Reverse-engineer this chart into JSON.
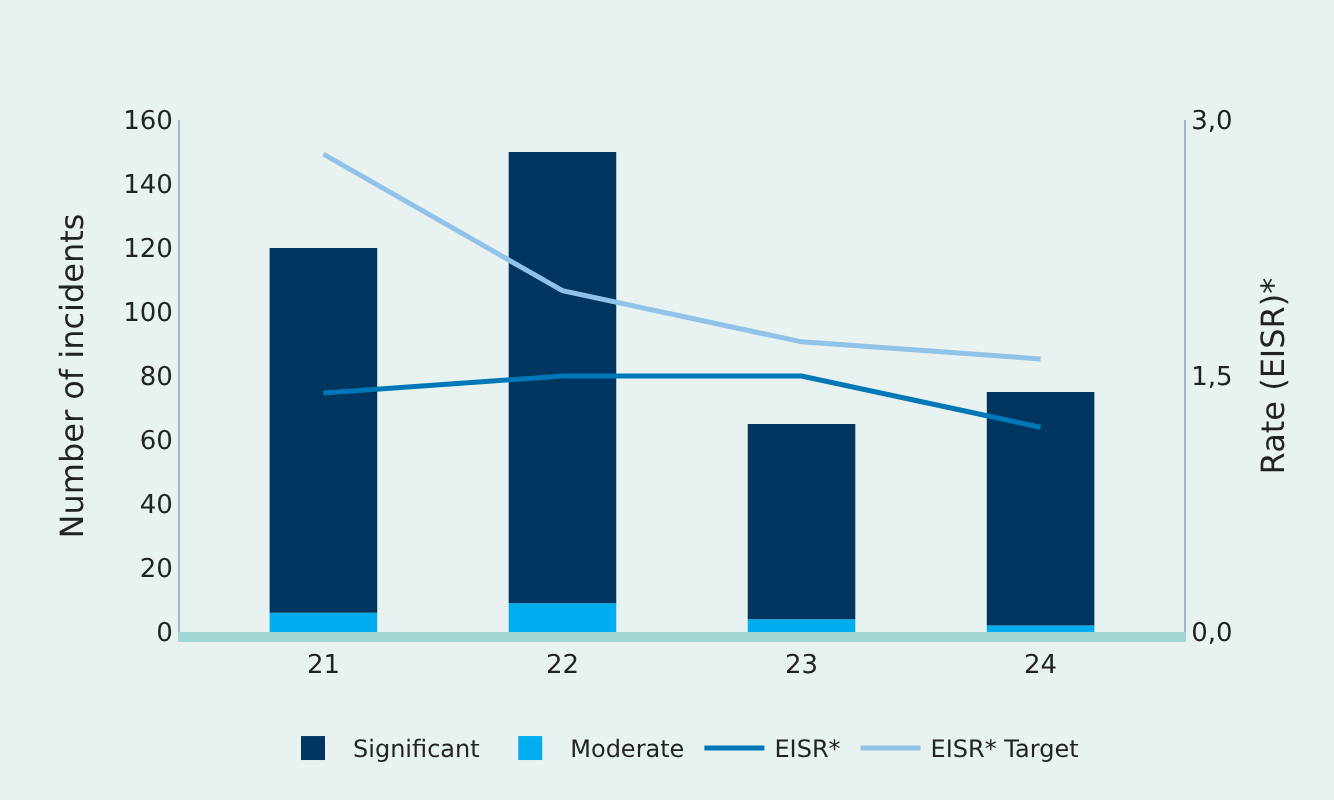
{
  "chart_data": {
    "type": "bar",
    "stacked": true,
    "categories": [
      "21",
      "22",
      "23",
      "24"
    ],
    "ylabel": "Number of incidents",
    "y2label": "Rate (EISR)*",
    "ylim": [
      0,
      160
    ],
    "yticks": [
      0,
      20,
      40,
      60,
      80,
      100,
      120,
      140,
      160
    ],
    "y2lim": [
      0,
      3
    ],
    "y2ticks": [
      {
        "value": 0,
        "label": "0,0"
      },
      {
        "value": 1.5,
        "label": "1,5"
      },
      {
        "value": 3,
        "label": "3,0"
      }
    ],
    "grid": false,
    "legend": "bottom",
    "series": [
      {
        "name": "Moderate",
        "color": "#00aeef",
        "values": [
          6,
          9,
          4,
          2
        ]
      },
      {
        "name": "Significant",
        "color": "#003660",
        "values": [
          114,
          141,
          61,
          73
        ]
      },
      {
        "name": "EISR*",
        "type": "line",
        "axis": "y2",
        "color": "#0077b6",
        "values": [
          1.4,
          1.5,
          1.5,
          1.2
        ]
      },
      {
        "name": "EISR* Target",
        "type": "line",
        "axis": "y2",
        "color": "#91c3ea",
        "values": [
          2.8,
          2.0,
          1.7,
          1.6
        ]
      }
    ]
  }
}
